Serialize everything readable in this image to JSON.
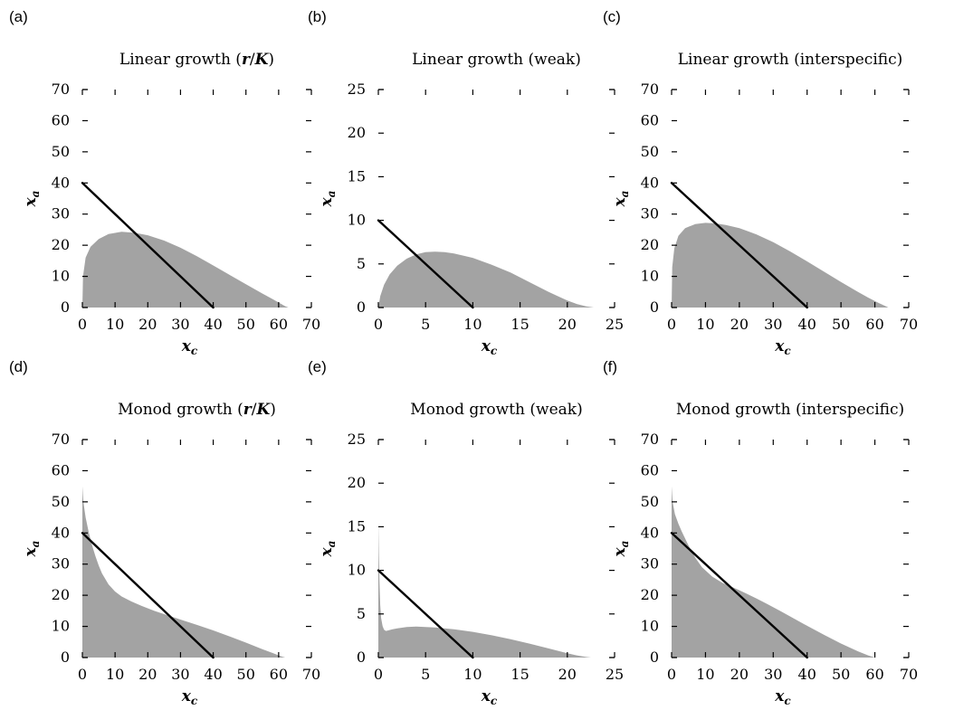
{
  "chart_data": [
    {
      "type": "area",
      "panel_label": "(a)",
      "title": "Linear growth (r/K)",
      "title_parts": [
        "Linear growth (",
        "r",
        "/",
        "K",
        ")"
      ],
      "xlabel": "x_c",
      "ylabel": "x_a",
      "xlim": [
        0,
        70
      ],
      "ylim": [
        0,
        70
      ],
      "xticks": [
        0,
        10,
        20,
        30,
        40,
        50,
        60,
        70
      ],
      "yticks": [
        0,
        10,
        20,
        30,
        40,
        50,
        60,
        70
      ],
      "region": {
        "x": [
          0,
          0.2,
          1,
          2.5,
          5,
          8,
          12,
          16,
          20,
          25,
          30,
          35,
          40,
          45,
          50,
          55,
          58,
          60,
          62,
          63
        ],
        "y": [
          0,
          10,
          16,
          19.5,
          22,
          23.6,
          24.3,
          24,
          23.2,
          21.5,
          19.2,
          16.5,
          13.5,
          10.5,
          7.5,
          4.5,
          2.8,
          1.6,
          0.4,
          0
        ]
      },
      "line": {
        "x": [
          0,
          40
        ],
        "y": [
          40,
          0
        ]
      }
    },
    {
      "type": "area",
      "panel_label": "(b)",
      "title": "Linear growth (weak)",
      "title_parts": [
        "Linear growth (weak)"
      ],
      "xlabel": "x_c",
      "ylabel": "x_a",
      "xlim": [
        0,
        25
      ],
      "ylim": [
        0,
        25
      ],
      "xticks": [
        0,
        5,
        10,
        15,
        20,
        25
      ],
      "yticks": [
        0,
        5,
        10,
        15,
        20,
        25
      ],
      "region": {
        "x": [
          0,
          0.2,
          0.6,
          1.2,
          2,
          3,
          4,
          5,
          6,
          7,
          8,
          10,
          12,
          14,
          16,
          18,
          19,
          20,
          21,
          22,
          22.8
        ],
        "y": [
          0,
          1.3,
          2.6,
          3.8,
          4.8,
          5.6,
          6.1,
          6.35,
          6.4,
          6.35,
          6.2,
          5.7,
          4.9,
          4.0,
          2.9,
          1.8,
          1.3,
          0.8,
          0.4,
          0.12,
          0
        ]
      },
      "line": {
        "x": [
          0,
          10
        ],
        "y": [
          10,
          0
        ]
      }
    },
    {
      "type": "area",
      "panel_label": "(c)",
      "title": "Linear growth (interspecific)",
      "title_parts": [
        "Linear growth (interspecific)"
      ],
      "xlabel": "x_c",
      "ylabel": "x_a",
      "xlim": [
        0,
        70
      ],
      "ylim": [
        0,
        70
      ],
      "xticks": [
        0,
        10,
        20,
        30,
        40,
        50,
        60,
        70
      ],
      "yticks": [
        0,
        10,
        20,
        30,
        40,
        50,
        60,
        70
      ],
      "region": {
        "x": [
          0,
          0.2,
          0.8,
          2,
          4,
          7,
          10,
          13,
          16,
          20,
          25,
          30,
          35,
          40,
          45,
          50,
          55,
          58,
          61,
          63,
          64
        ],
        "y": [
          0,
          13,
          19,
          23,
          25.5,
          26.8,
          27.2,
          27,
          26.5,
          25.5,
          23.5,
          21,
          18,
          14.8,
          11.5,
          8.2,
          5,
          3.2,
          1.5,
          0.5,
          0
        ]
      },
      "line": {
        "x": [
          0,
          40
        ],
        "y": [
          40,
          0
        ]
      }
    },
    {
      "type": "area",
      "panel_label": "(d)",
      "title": "Monod growth (r/K)",
      "title_parts": [
        "Monod growth (",
        "r",
        "/",
        "K",
        ")"
      ],
      "xlabel": "x_c",
      "ylabel": "x_a",
      "xlim": [
        0,
        70
      ],
      "ylim": [
        0,
        70
      ],
      "xticks": [
        0,
        10,
        20,
        30,
        40,
        50,
        60,
        70
      ],
      "yticks": [
        0,
        10,
        20,
        30,
        40,
        50,
        60,
        70
      ],
      "region": {
        "x": [
          0,
          0.3,
          1,
          2,
          3,
          4,
          5,
          6,
          8,
          10,
          12,
          15,
          18,
          22,
          26,
          30,
          35,
          40,
          45,
          50,
          55,
          58,
          61,
          62
        ],
        "y": [
          55,
          50,
          45,
          40,
          36,
          32.5,
          29.5,
          27,
          23.5,
          21.2,
          19.6,
          18,
          16.6,
          15,
          13.6,
          12.2,
          10.5,
          8.7,
          6.8,
          4.8,
          2.7,
          1.5,
          0.3,
          0
        ]
      },
      "line": {
        "x": [
          0,
          40
        ],
        "y": [
          40,
          0
        ]
      }
    },
    {
      "type": "area",
      "panel_label": "(e)",
      "title": "Monod growth (weak)",
      "title_parts": [
        "Monod growth (weak)"
      ],
      "xlabel": "x_c",
      "ylabel": "x_a",
      "xlim": [
        0,
        25
      ],
      "ylim": [
        0,
        25
      ],
      "xticks": [
        0,
        5,
        10,
        15,
        20,
        25
      ],
      "yticks": [
        0,
        5,
        10,
        15,
        20,
        25
      ],
      "region": {
        "x": [
          0,
          0.05,
          0.12,
          0.2,
          0.3,
          0.45,
          0.6,
          0.8,
          1,
          1.5,
          2,
          3,
          4,
          5,
          6,
          8,
          10,
          12,
          14,
          16,
          18,
          20,
          21,
          22,
          22.5
        ],
        "y": [
          15.5,
          12,
          8.5,
          6,
          4.5,
          3.6,
          3.2,
          3.05,
          3.1,
          3.25,
          3.35,
          3.5,
          3.55,
          3.5,
          3.45,
          3.25,
          2.95,
          2.55,
          2.1,
          1.6,
          1.05,
          0.5,
          0.25,
          0.06,
          0
        ]
      },
      "line": {
        "x": [
          0,
          10
        ],
        "y": [
          10,
          0
        ]
      }
    },
    {
      "type": "area",
      "panel_label": "(f)",
      "title": "Monod growth (interspecific)",
      "title_parts": [
        "Monod growth (interspecific)"
      ],
      "xlabel": "x_c",
      "ylabel": "x_a",
      "xlim": [
        0,
        70
      ],
      "ylim": [
        0,
        70
      ],
      "xticks": [
        0,
        10,
        20,
        30,
        40,
        50,
        60,
        70
      ],
      "yticks": [
        0,
        10,
        20,
        30,
        40,
        50,
        60,
        70
      ],
      "region": {
        "x": [
          0,
          0.3,
          1,
          2,
          3,
          4,
          5,
          7,
          9,
          12,
          15,
          18,
          20,
          22,
          25,
          28,
          32,
          36,
          40,
          45,
          50,
          55,
          58,
          60
        ],
        "y": [
          55,
          50,
          46,
          43,
          40.5,
          38.2,
          36,
          32,
          29,
          26,
          24,
          22.6,
          21.6,
          20.6,
          19,
          17.3,
          15,
          12.6,
          10.2,
          7.3,
          4.5,
          2,
          0.7,
          0
        ]
      },
      "line": {
        "x": [
          0,
          40
        ],
        "y": [
          40,
          0
        ]
      }
    }
  ]
}
